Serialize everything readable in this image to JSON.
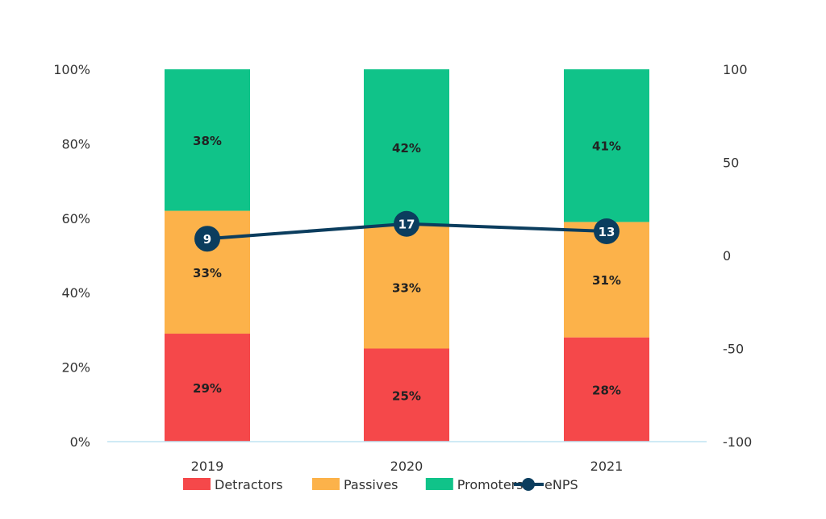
{
  "chart_data": {
    "type": "bar",
    "stacked": true,
    "categories": [
      "2019",
      "2020",
      "2021"
    ],
    "series": [
      {
        "name": "Detractors",
        "values": [
          29,
          25,
          28
        ],
        "color": "#F5484A",
        "labels": [
          "29%",
          "25%",
          "28%"
        ]
      },
      {
        "name": "Passives",
        "values": [
          33,
          33,
          31
        ],
        "color": "#FCB24A",
        "labels": [
          "33%",
          "33%",
          "31%"
        ]
      },
      {
        "name": "Promoters",
        "values": [
          38,
          42,
          41
        ],
        "color": "#10C389",
        "labels": [
          "38%",
          "42%",
          "41%"
        ]
      }
    ],
    "line_series": {
      "name": "eNPS",
      "type": "line",
      "axis": "right",
      "values": [
        9,
        17,
        13
      ],
      "labels": [
        "9",
        "17",
        "13"
      ],
      "color": "#0B3D5E"
    },
    "ylim": [
      0,
      100
    ],
    "y_ticks": [
      "0%",
      "20%",
      "40%",
      "60%",
      "80%",
      "100%"
    ],
    "y2lim": [
      -100,
      100
    ],
    "y2_ticks": [
      "-100",
      "-50",
      "0",
      "50",
      "100"
    ],
    "grid": false,
    "legend_position": "bottom"
  }
}
